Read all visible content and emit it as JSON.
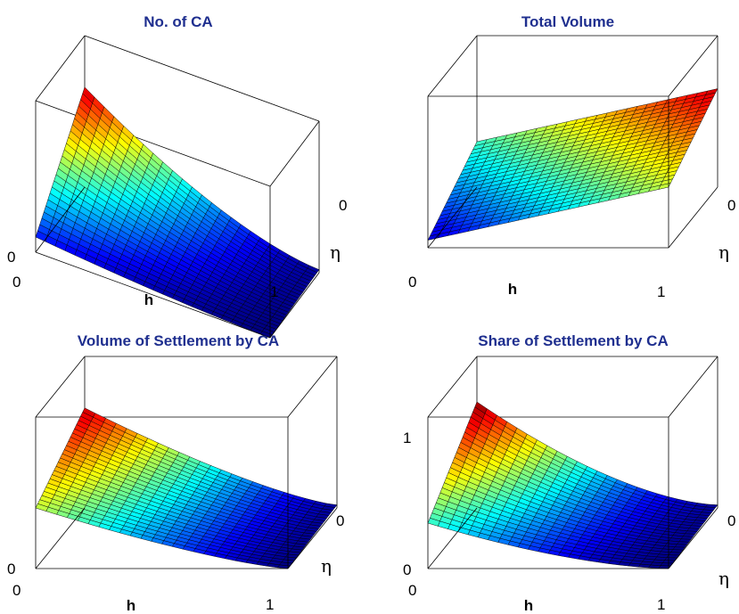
{
  "colors": {
    "title": "#1f2f8f",
    "colormap": "jet"
  },
  "chart_data": [
    {
      "type": "surface",
      "title": "No. of CA",
      "xlabel": "h",
      "ylabel": "η",
      "x_ticks": [
        "0",
        "1"
      ],
      "y_ticks": [
        "0"
      ],
      "z_ticks": [
        "0"
      ],
      "x_range": [
        0,
        1
      ],
      "y_range": [
        0,
        1
      ],
      "z_range": [
        0,
        1
      ],
      "surface": {
        "corner_h0_eta0": 0.66,
        "corner_h1_eta0": 0.02,
        "corner_h0_eta1": 0.1,
        "corner_h1_eta1": 0.0,
        "curvature": 1.6
      }
    },
    {
      "type": "surface",
      "title": "Total Volume",
      "xlabel": "h",
      "ylabel": "η",
      "x_ticks": [
        "0",
        "1"
      ],
      "y_ticks": [
        "0"
      ],
      "z_ticks": [],
      "x_range": [
        0,
        1
      ],
      "y_range": [
        0,
        1
      ],
      "z_range": [
        0,
        1
      ],
      "surface": {
        "corner_h0_eta0": 0.3,
        "corner_h1_eta0": 0.65,
        "corner_h0_eta1": 0.05,
        "corner_h1_eta1": 0.4,
        "curvature": 1.0
      }
    },
    {
      "type": "surface",
      "title": "Volume of Settlement by CA",
      "xlabel": "h",
      "ylabel": "η",
      "x_ticks": [
        "0",
        "1"
      ],
      "y_ticks": [
        "0"
      ],
      "z_ticks": [
        "0"
      ],
      "x_range": [
        0,
        1
      ],
      "y_range": [
        0,
        1
      ],
      "z_range": [
        0,
        1
      ],
      "surface": {
        "corner_h0_eta0": 0.66,
        "corner_h1_eta0": 0.02,
        "corner_h0_eta1": 0.4,
        "corner_h1_eta1": 0.0,
        "curvature": 1.3
      }
    },
    {
      "type": "surface",
      "title": "Share of Settlement by CA",
      "xlabel": "h",
      "ylabel": "η",
      "x_ticks": [
        "0",
        "1"
      ],
      "y_ticks": [
        "0"
      ],
      "z_ticks": [
        "0",
        "1"
      ],
      "x_range": [
        0,
        1
      ],
      "y_range": [
        0,
        1
      ],
      "z_range": [
        0,
        1
      ],
      "surface": {
        "corner_h0_eta0": 0.7,
        "corner_h1_eta0": 0.02,
        "corner_h0_eta1": 0.3,
        "corner_h1_eta1": 0.0,
        "curvature": 1.6
      }
    }
  ]
}
